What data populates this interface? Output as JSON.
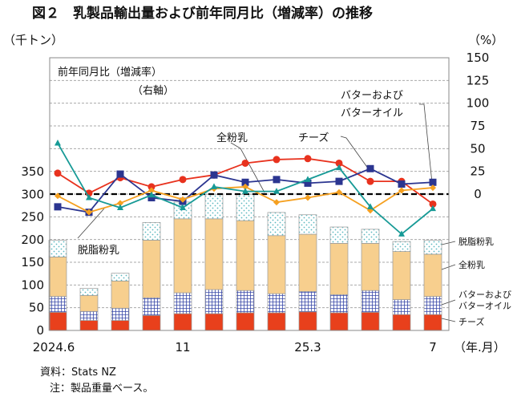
{
  "chart_data": {
    "type": "bar",
    "title": "図２　乳製品輸出量および前年同月比（増減率）の推移",
    "ylabel": "（千トン）",
    "y2label": "（%）",
    "xlabel": "（年.月）",
    "ylim": [
      0,
      350
    ],
    "y2lim": [
      -150,
      150
    ],
    "yticks": [
      0,
      50,
      100,
      150,
      200,
      250,
      300,
      350
    ],
    "y2ticks": [
      0,
      25,
      50,
      75,
      100,
      125,
      150
    ],
    "xtick_labels": [
      "2024.6",
      "",
      "",
      "",
      "11",
      "",
      "",
      "",
      "25.3",
      "",
      "",
      "",
      "7"
    ],
    "stack_series": [
      {
        "name": "チーズ",
        "label": "チーズ",
        "color": "#e8401c",
        "values": [
          40,
          22,
          22,
          33,
          37,
          37,
          39,
          39,
          41,
          39,
          40,
          35,
          35
        ]
      },
      {
        "name": "バターおよびバターオイル",
        "label": [
          "バターおよび",
          "バターオイル"
        ],
        "color": "#3a4aa8",
        "values": [
          35,
          20,
          27,
          39,
          46,
          53,
          49,
          42,
          45,
          40,
          48,
          33,
          40
        ]
      },
      {
        "name": "全粉乳",
        "label": "全粉乳",
        "color": "#f7cf8e",
        "values": [
          87,
          35,
          60,
          127,
          163,
          156,
          154,
          128,
          126,
          113,
          104,
          106,
          93
        ]
      },
      {
        "name": "脱脂粉乳",
        "label": "脱脂粉乳",
        "color": "#5bb8c0",
        "values": [
          37,
          16,
          17,
          39,
          37,
          54,
          58,
          51,
          43,
          36,
          31,
          22,
          31
        ]
      }
    ],
    "line_series": [
      {
        "name": "チーズ",
        "color": "#e8321e",
        "marker": "circle",
        "values": [
          23,
          1,
          18,
          8,
          16,
          21,
          34,
          38,
          39,
          34,
          14,
          14,
          -11
        ]
      },
      {
        "name": "バターおよびバターオイル",
        "color": "#2b3590",
        "marker": "square",
        "values": [
          -14,
          -20,
          22,
          -4,
          -8,
          21,
          13,
          16,
          12,
          14,
          28,
          11,
          13
        ]
      },
      {
        "name": "全粉乳",
        "color": "#f5a020",
        "marker": "diamond",
        "values": [
          -2,
          -20,
          -10,
          4,
          -6,
          6,
          8,
          -9,
          -4,
          2,
          -18,
          4,
          7
        ]
      },
      {
        "name": "脱脂粉乳",
        "color": "#179a96",
        "marker": "triangle",
        "values": [
          56,
          -4,
          -15,
          -1,
          -15,
          8,
          3,
          3,
          16,
          29,
          -14,
          -44,
          -16
        ]
      }
    ],
    "annotations": {
      "yoy_label": "前年同月比（増減率）",
      "right_axis": "（右軸）",
      "butter1": "バターおよび",
      "butter2": "バターオイル",
      "whole": "全粉乳",
      "cheese": "チーズ",
      "skim": "脱脂粉乳"
    }
  },
  "footer": {
    "source": "資料：Stats NZ",
    "note": "注：製品重量ベース。"
  }
}
